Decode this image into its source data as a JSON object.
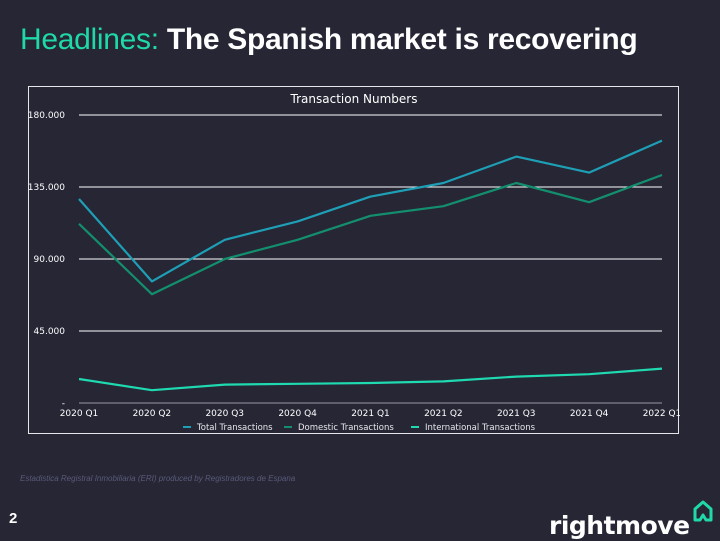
{
  "slide": {
    "headline_lead": "Headlines:",
    "headline_main": "The Spanish market is recovering",
    "source_note": "Estadistica Registral Inmobiliaria (ERI) produced by Registradores de Espana",
    "page_number": "2",
    "logo_text": "rightmove",
    "logo_icon": "house-icon"
  },
  "colors": {
    "background": "#262635",
    "accent": "#1fd9a9",
    "total": "#1e9fb5",
    "domestic": "#138f6e",
    "international": "#1fd9b0",
    "grid": "#ffffff"
  },
  "chart_data": {
    "type": "line",
    "title": "Transaction Numbers",
    "xlabel": "",
    "ylabel": "",
    "categories": [
      "2020 Q1",
      "2020 Q2",
      "2020 Q3",
      "2020 Q4",
      "2021 Q1",
      "2021 Q2",
      "2021 Q3",
      "2021 Q4",
      "2022 Q1"
    ],
    "ylim": [
      0,
      180000
    ],
    "yticks": [
      0,
      45000,
      90000,
      135000,
      180000
    ],
    "ytick_labels": [
      "-",
      "45.000",
      "90.000",
      "135.000",
      "180.000"
    ],
    "grid": true,
    "legend_position": "bottom",
    "series": [
      {
        "name": "Total Transactions",
        "color": "#1e9fb5",
        "values": [
          127500,
          76000,
          102000,
          113500,
          129000,
          137500,
          154000,
          144000,
          164000
        ]
      },
      {
        "name": "Domestic Transactions",
        "color": "#138f6e",
        "values": [
          112000,
          68000,
          90000,
          102000,
          117000,
          123000,
          137500,
          125500,
          142500
        ]
      },
      {
        "name": "International Transactions",
        "color": "#1fd9b0",
        "values": [
          15000,
          8000,
          11500,
          12000,
          12500,
          13500,
          16500,
          18000,
          21500
        ]
      }
    ]
  }
}
